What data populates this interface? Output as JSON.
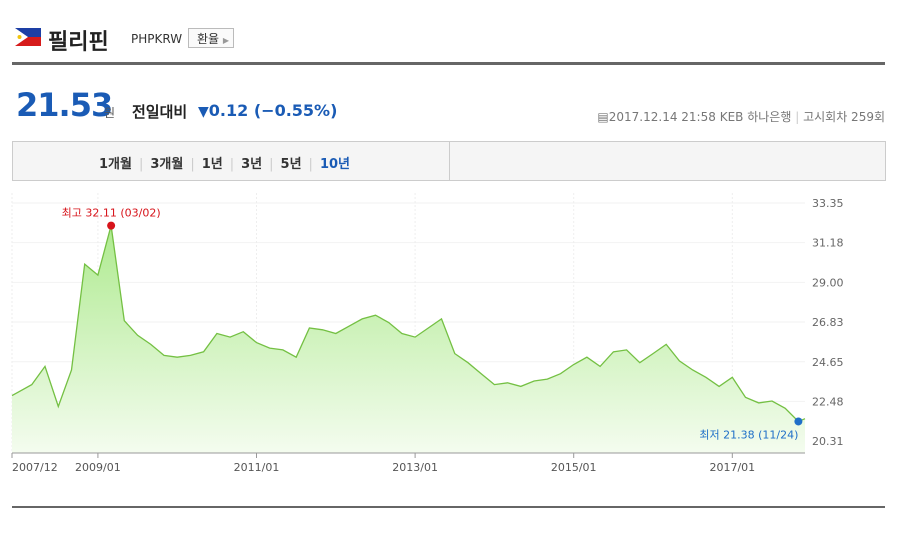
{
  "header": {
    "title": "필리핀",
    "code": "PHPKRW",
    "button": "환율"
  },
  "quote": {
    "price": "21.53",
    "unit": "원",
    "change_label": "전일대비",
    "change": "0.12",
    "change_pct": "(−0.55%)",
    "date": "2017.12.14 21:58",
    "bank": "KEB 하나은행",
    "notice": "고시회차 259회"
  },
  "tabs": [
    "1개월",
    "3개월",
    "1년",
    "3년",
    "5년",
    "10년"
  ],
  "active_tab": 5,
  "chart_data": {
    "type": "area",
    "x": [
      "2007/12",
      "2008/01",
      "2008/03",
      "2008/05",
      "2008/07",
      "2008/09",
      "2008/11",
      "2009/01",
      "2009/03",
      "2009/05",
      "2009/07",
      "2009/09",
      "2009/11",
      "2010/01",
      "2010/03",
      "2010/05",
      "2010/07",
      "2010/09",
      "2010/11",
      "2011/01",
      "2011/03",
      "2011/05",
      "2011/07",
      "2011/09",
      "2011/11",
      "2012/01",
      "2012/03",
      "2012/05",
      "2012/07",
      "2012/09",
      "2012/11",
      "2013/01",
      "2013/03",
      "2013/05",
      "2013/07",
      "2013/09",
      "2013/11",
      "2014/01",
      "2014/03",
      "2014/05",
      "2014/07",
      "2014/09",
      "2014/11",
      "2015/01",
      "2015/03",
      "2015/05",
      "2015/07",
      "2015/09",
      "2015/11",
      "2016/01",
      "2016/03",
      "2016/05",
      "2016/07",
      "2016/09",
      "2016/11",
      "2017/01",
      "2017/03",
      "2017/05",
      "2017/07",
      "2017/09",
      "2017/11",
      "2017/12"
    ],
    "series": [
      {
        "color": "#74c043",
        "values": [
          22.8,
          23.0,
          23.4,
          24.4,
          22.2,
          24.2,
          30.0,
          29.4,
          32.11,
          26.9,
          26.1,
          25.6,
          25.0,
          24.9,
          25.0,
          25.2,
          26.2,
          26.0,
          26.3,
          25.7,
          25.4,
          25.3,
          24.9,
          26.5,
          26.4,
          26.2,
          26.6,
          27.0,
          27.2,
          26.8,
          26.2,
          26.0,
          26.5,
          27.0,
          25.1,
          24.6,
          24.0,
          23.4,
          23.5,
          23.3,
          23.6,
          23.7,
          24.0,
          24.5,
          24.9,
          24.4,
          25.2,
          25.3,
          24.6,
          25.1,
          25.6,
          24.7,
          24.2,
          23.8,
          23.3,
          23.8,
          22.7,
          22.4,
          22.5,
          22.1,
          21.38,
          21.53
        ]
      }
    ],
    "xlim": [
      "2007/12",
      "2017/12"
    ],
    "xticks": [
      "2007/12",
      "2009/01",
      "2011/01",
      "2013/01",
      "2015/01",
      "2017/01"
    ],
    "ylim": [
      20.31,
      33.35
    ],
    "yticks": [
      33.35,
      31.18,
      {
        "value": 29,
        "label": "29.00"
      },
      26.83,
      24.65,
      22.48,
      20.31
    ],
    "grid": true,
    "annotations": [
      {
        "value": 32.11,
        "label": "최고 32.11 (03/02)",
        "color": "#d7141b"
      },
      {
        "value": 21.38,
        "label": "최저 21.38 (11/24)",
        "color": "#1f6fc8"
      }
    ]
  }
}
